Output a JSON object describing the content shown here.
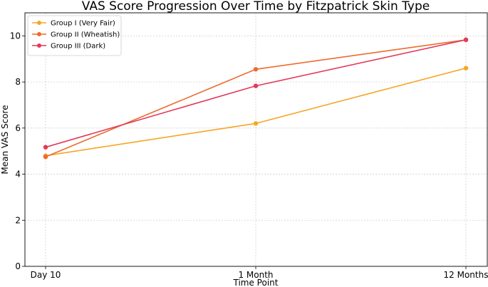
{
  "chart_data": {
    "type": "line",
    "title": "VAS Score Progression Over Time by Fitzpatrick Skin Type",
    "xlabel": "Time Point",
    "ylabel": "Mean VAS Score",
    "categories": [
      "Day 10",
      "1 Month",
      "12 Months"
    ],
    "ylim": [
      0,
      11
    ],
    "yticks": [
      0,
      2,
      4,
      6,
      8,
      10
    ],
    "grid": true,
    "legend_position": "top-left",
    "series": [
      {
        "name": "Group I (Very Fair)",
        "color": "#f5a623",
        "values": [
          4.8,
          6.2,
          8.6
        ]
      },
      {
        "name": "Group II (Wheatish)",
        "color": "#ee6a2c",
        "values": [
          4.75,
          8.55,
          9.83
        ]
      },
      {
        "name": "Group III (Dark)",
        "color": "#e23a5a",
        "values": [
          5.17,
          7.83,
          9.83
        ]
      }
    ]
  }
}
